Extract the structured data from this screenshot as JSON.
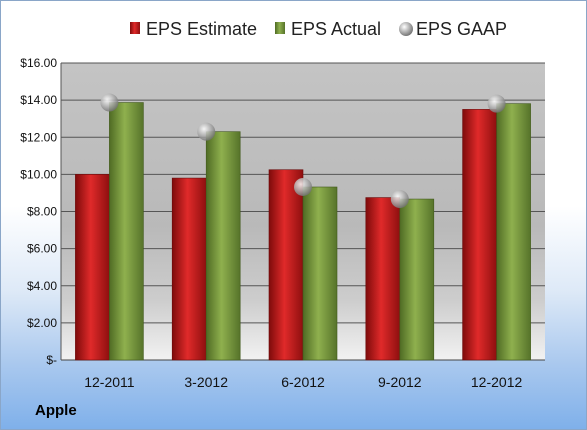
{
  "company": "Apple",
  "chart_data": {
    "type": "bar",
    "categories": [
      "12-2011",
      "3-2012",
      "6-2012",
      "9-2012",
      "12-2012"
    ],
    "series": [
      {
        "name": "EPS Estimate",
        "type": "bar",
        "color": "#cc1b1b",
        "values": [
          10.0,
          9.8,
          10.25,
          8.75,
          13.5
        ]
      },
      {
        "name": "EPS Actual",
        "type": "bar",
        "color": "#86a64a",
        "values": [
          13.87,
          12.3,
          9.32,
          8.67,
          13.81
        ]
      },
      {
        "name": "EPS GAAP",
        "type": "marker",
        "color": "#b3b3b3",
        "values": [
          13.87,
          12.3,
          9.32,
          8.67,
          13.81
        ]
      }
    ],
    "ylim": [
      0,
      16
    ],
    "yticks": [
      "$-",
      "$2.00",
      "$4.00",
      "$6.00",
      "$8.00",
      "$10.00",
      "$12.00",
      "$14.00",
      "$16.00"
    ],
    "grid": true,
    "legend": "top"
  }
}
